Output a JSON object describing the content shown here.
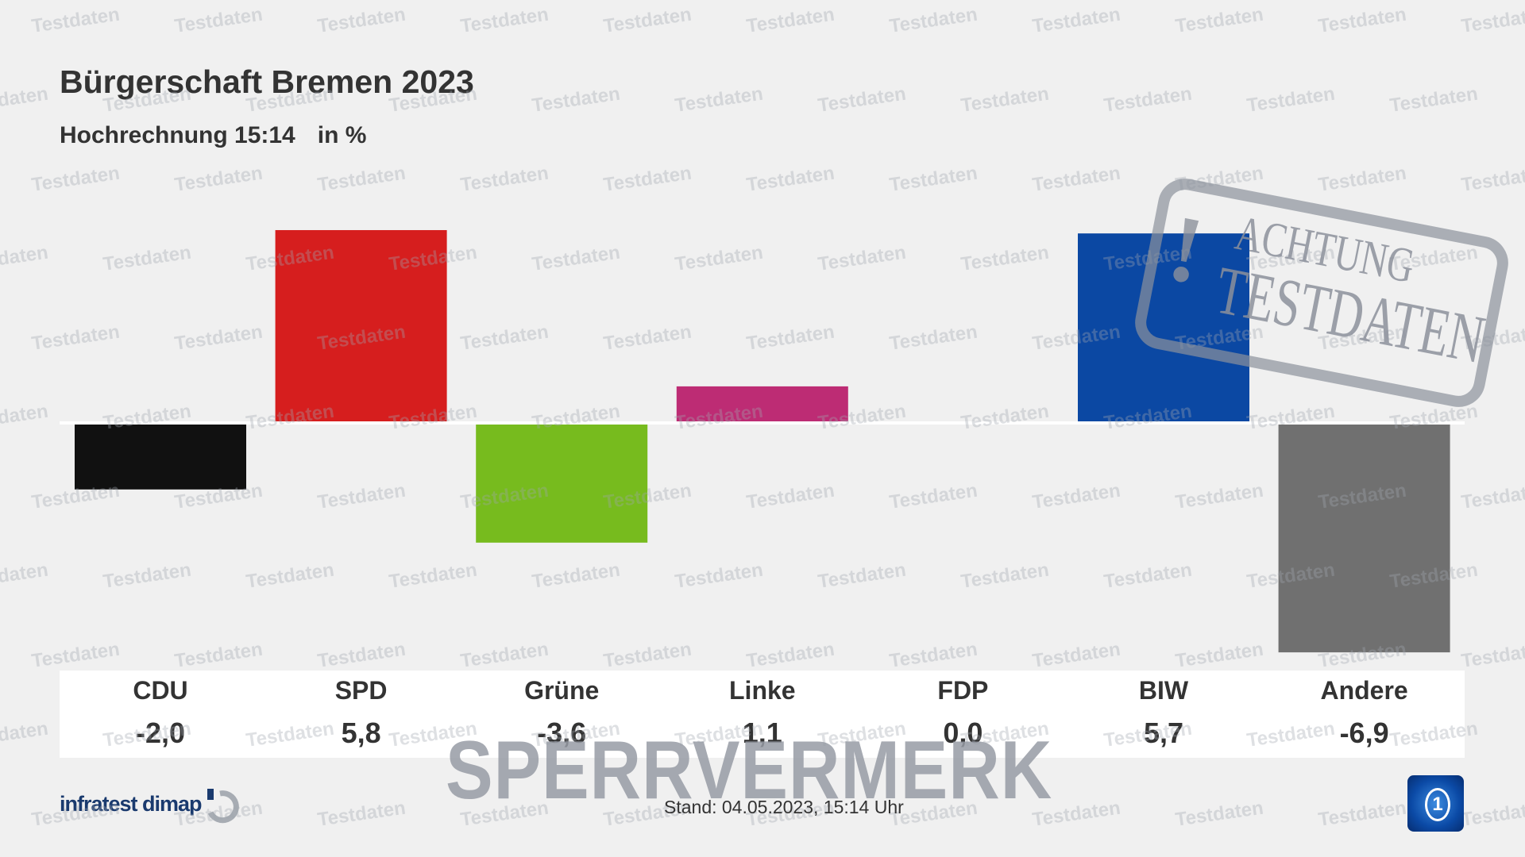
{
  "chart_data": {
    "type": "bar",
    "title": "Bürgerschaft Bremen 2023",
    "subtitle": "Hochrechnung 15:14",
    "unit": "in %",
    "categories": [
      "CDU",
      "SPD",
      "Grüne",
      "Linke",
      "FDP",
      "BIW",
      "Andere"
    ],
    "values": [
      -2.0,
      5.8,
      -3.6,
      1.1,
      0.0,
      5.7,
      -6.9
    ],
    "value_labels": [
      "-2,0",
      "5,8",
      "-3,6",
      "1,1",
      "0,0",
      "5,7",
      "-6,9"
    ],
    "colors": [
      "#111111",
      "#d61e1e",
      "#77bb1e",
      "#bd2c74",
      "#f5e000",
      "#0b48a3",
      "#707070"
    ],
    "grid": false,
    "legend": "none"
  },
  "footer": {
    "stand": "Stand:  04.05.2023, 15:14 Uhr",
    "source_logo": "infratest dimap",
    "broadcaster_logo": "ARD Das Erste logo"
  },
  "overlays": {
    "watermark": "Testdaten",
    "stamp_line1": "ACHTUNG",
    "stamp_line2": "TESTDATEN",
    "sperrvermerk": "SPERRVERMERK"
  }
}
